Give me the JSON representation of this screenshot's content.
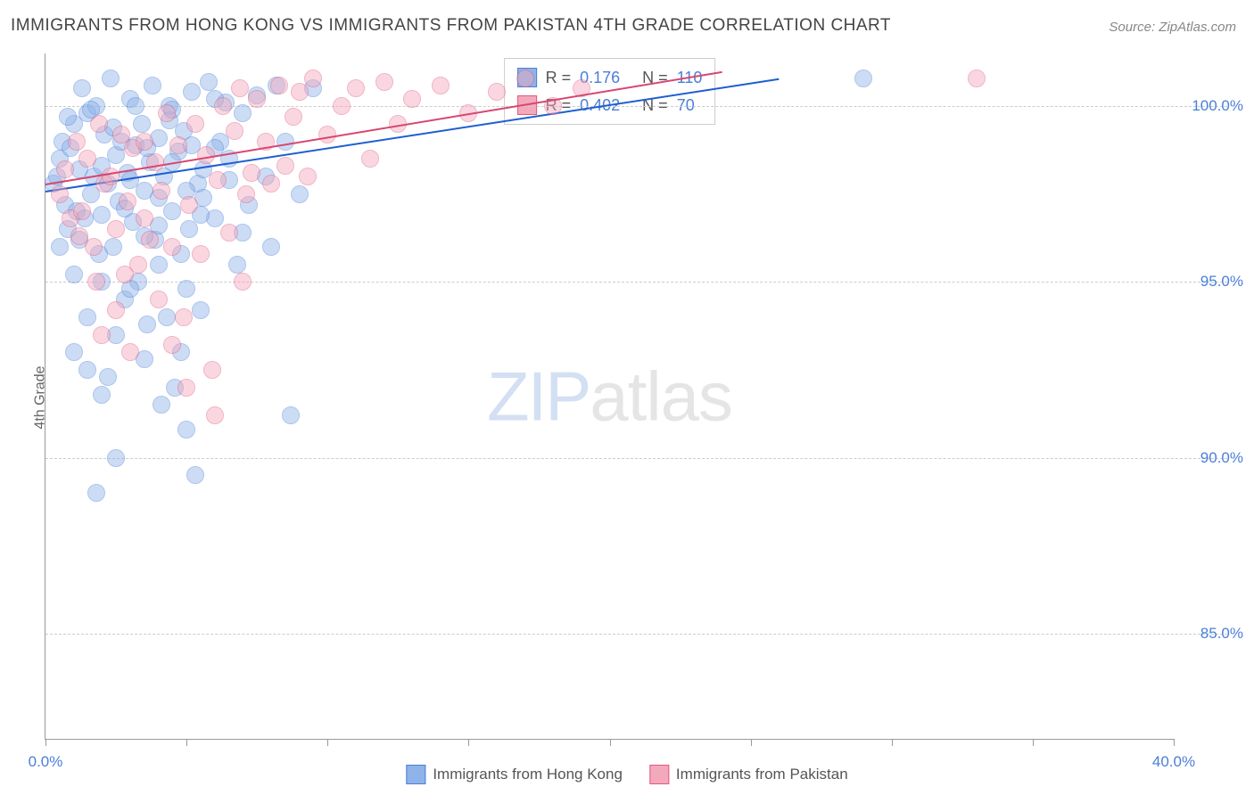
{
  "title": "IMMIGRANTS FROM HONG KONG VS IMMIGRANTS FROM PAKISTAN 4TH GRADE CORRELATION CHART",
  "source_label": "Source: ",
  "source_link": "ZipAtlas.com",
  "ylabel": "4th Grade",
  "watermark": {
    "part1": "ZIP",
    "part2": "atlas"
  },
  "chart": {
    "type": "scatter",
    "xlim": [
      0,
      40
    ],
    "ylim": [
      82,
      101.5
    ],
    "x_ticks": [
      0,
      5,
      10,
      15,
      20,
      25,
      30,
      35,
      40
    ],
    "x_tick_labels": {
      "0": "0.0%",
      "40": "40.0%"
    },
    "y_ticks": [
      85,
      90,
      95,
      100
    ],
    "y_tick_labels": [
      "85.0%",
      "90.0%",
      "95.0%",
      "100.0%"
    ],
    "grid_color": "#cccccc",
    "background_color": "#ffffff",
    "point_radius": 10,
    "point_opacity": 0.45,
    "series": [
      {
        "name": "Immigrants from Hong Kong",
        "fill": "#8fb3e8",
        "stroke": "#4a7fd8",
        "line_color": "#1e5fd0",
        "R": "0.176",
        "N": "110",
        "trend": {
          "x1": 0,
          "y1": 97.6,
          "x2": 26,
          "y2": 100.8
        },
        "points": [
          [
            0.3,
            97.8
          ],
          [
            0.4,
            98.0
          ],
          [
            0.5,
            98.5
          ],
          [
            0.6,
            99.0
          ],
          [
            0.7,
            97.2
          ],
          [
            0.8,
            96.5
          ],
          [
            0.9,
            98.8
          ],
          [
            1.0,
            99.5
          ],
          [
            1.1,
            97.0
          ],
          [
            1.2,
            98.2
          ],
          [
            1.3,
            100.5
          ],
          [
            1.4,
            96.8
          ],
          [
            1.5,
            99.8
          ],
          [
            1.6,
            97.5
          ],
          [
            1.7,
            98.0
          ],
          [
            1.8,
            100.0
          ],
          [
            1.9,
            95.8
          ],
          [
            2.0,
            98.3
          ],
          [
            2.1,
            99.2
          ],
          [
            2.2,
            97.8
          ],
          [
            2.3,
            100.8
          ],
          [
            2.4,
            96.0
          ],
          [
            2.5,
            98.6
          ],
          [
            2.6,
            97.3
          ],
          [
            2.7,
            99.0
          ],
          [
            2.8,
            94.5
          ],
          [
            2.9,
            98.1
          ],
          [
            3.0,
            100.2
          ],
          [
            3.1,
            96.7
          ],
          [
            3.2,
            98.9
          ],
          [
            3.3,
            95.0
          ],
          [
            3.4,
            99.5
          ],
          [
            3.5,
            97.6
          ],
          [
            3.6,
            93.8
          ],
          [
            3.7,
            98.4
          ],
          [
            3.8,
            100.6
          ],
          [
            3.9,
            96.2
          ],
          [
            4.0,
            99.1
          ],
          [
            4.1,
            91.5
          ],
          [
            4.2,
            98.0
          ],
          [
            4.3,
            94.0
          ],
          [
            4.4,
            100.0
          ],
          [
            4.5,
            97.0
          ],
          [
            4.6,
            92.0
          ],
          [
            4.7,
            98.7
          ],
          [
            4.8,
            93.0
          ],
          [
            4.9,
            99.3
          ],
          [
            5.0,
            90.8
          ],
          [
            5.1,
            96.5
          ],
          [
            5.2,
            100.4
          ],
          [
            5.3,
            89.5
          ],
          [
            5.4,
            97.8
          ],
          [
            5.5,
            94.2
          ],
          [
            5.6,
            98.2
          ],
          [
            5.8,
            100.7
          ],
          [
            6.0,
            96.8
          ],
          [
            6.2,
            99.0
          ],
          [
            6.4,
            100.1
          ],
          [
            6.5,
            98.5
          ],
          [
            6.8,
            95.5
          ],
          [
            7.0,
            99.8
          ],
          [
            7.2,
            97.2
          ],
          [
            7.5,
            100.3
          ],
          [
            7.8,
            98.0
          ],
          [
            8.0,
            96.0
          ],
          [
            8.2,
            100.6
          ],
          [
            8.5,
            99.0
          ],
          [
            8.7,
            91.2
          ],
          [
            9.0,
            97.5
          ],
          [
            9.5,
            100.5
          ],
          [
            1.0,
            95.2
          ],
          [
            1.5,
            94.0
          ],
          [
            2.0,
            96.9
          ],
          [
            2.5,
            93.5
          ],
          [
            3.0,
            97.9
          ],
          [
            3.5,
            96.3
          ],
          [
            4.0,
            95.5
          ],
          [
            4.5,
            98.4
          ],
          [
            5.0,
            97.6
          ],
          [
            0.8,
            99.7
          ],
          [
            1.2,
            96.2
          ],
          [
            1.6,
            99.9
          ],
          [
            2.0,
            95.0
          ],
          [
            2.4,
            99.4
          ],
          [
            2.8,
            97.1
          ],
          [
            3.2,
            100.0
          ],
          [
            3.6,
            98.8
          ],
          [
            4.0,
            96.6
          ],
          [
            4.4,
            99.6
          ],
          [
            4.8,
            95.8
          ],
          [
            5.2,
            98.9
          ],
          [
            5.6,
            97.4
          ],
          [
            6.0,
            100.2
          ],
          [
            0.5,
            96.0
          ],
          [
            1.0,
            93.0
          ],
          [
            1.5,
            92.5
          ],
          [
            2.0,
            91.8
          ],
          [
            2.5,
            90.0
          ],
          [
            3.0,
            94.8
          ],
          [
            3.5,
            92.8
          ],
          [
            4.0,
            97.4
          ],
          [
            4.5,
            99.9
          ],
          [
            5.0,
            94.8
          ],
          [
            5.5,
            96.9
          ],
          [
            6.0,
            98.8
          ],
          [
            6.5,
            97.9
          ],
          [
            7.0,
            96.4
          ],
          [
            29.0,
            100.8
          ],
          [
            1.8,
            89.0
          ],
          [
            2.2,
            92.3
          ]
        ]
      },
      {
        "name": "Immigrants from Pakistan",
        "fill": "#f4a8bb",
        "stroke": "#e05a80",
        "line_color": "#d84670",
        "R": "0.402",
        "N": "70",
        "trend": {
          "x1": 0,
          "y1": 97.8,
          "x2": 24,
          "y2": 101.0
        },
        "points": [
          [
            0.5,
            97.5
          ],
          [
            0.7,
            98.2
          ],
          [
            0.9,
            96.8
          ],
          [
            1.1,
            99.0
          ],
          [
            1.3,
            97.0
          ],
          [
            1.5,
            98.5
          ],
          [
            1.7,
            96.0
          ],
          [
            1.9,
            99.5
          ],
          [
            2.1,
            97.8
          ],
          [
            2.3,
            98.0
          ],
          [
            2.5,
            96.5
          ],
          [
            2.7,
            99.2
          ],
          [
            2.9,
            97.3
          ],
          [
            3.1,
            98.8
          ],
          [
            3.3,
            95.5
          ],
          [
            3.5,
            99.0
          ],
          [
            3.7,
            96.2
          ],
          [
            3.9,
            98.4
          ],
          [
            4.1,
            97.6
          ],
          [
            4.3,
            99.8
          ],
          [
            4.5,
            96.0
          ],
          [
            4.7,
            98.9
          ],
          [
            4.9,
            94.0
          ],
          [
            5.1,
            97.2
          ],
          [
            5.3,
            99.5
          ],
          [
            5.5,
            95.8
          ],
          [
            5.7,
            98.6
          ],
          [
            5.9,
            92.5
          ],
          [
            6.1,
            97.9
          ],
          [
            6.3,
            100.0
          ],
          [
            6.5,
            96.4
          ],
          [
            6.7,
            99.3
          ],
          [
            6.9,
            100.5
          ],
          [
            7.1,
            97.5
          ],
          [
            7.3,
            98.1
          ],
          [
            7.5,
            100.2
          ],
          [
            7.8,
            99.0
          ],
          [
            8.0,
            97.8
          ],
          [
            8.3,
            100.6
          ],
          [
            8.5,
            98.3
          ],
          [
            8.8,
            99.7
          ],
          [
            9.0,
            100.4
          ],
          [
            9.3,
            98.0
          ],
          [
            9.5,
            100.8
          ],
          [
            10.0,
            99.2
          ],
          [
            10.5,
            100.0
          ],
          [
            11.0,
            100.5
          ],
          [
            11.5,
            98.5
          ],
          [
            12.0,
            100.7
          ],
          [
            12.5,
            99.5
          ],
          [
            13.0,
            100.2
          ],
          [
            14.0,
            100.6
          ],
          [
            15.0,
            99.8
          ],
          [
            16.0,
            100.4
          ],
          [
            17.0,
            100.8
          ],
          [
            18.0,
            100.0
          ],
          [
            19.0,
            100.5
          ],
          [
            33.0,
            100.8
          ],
          [
            2.0,
            93.5
          ],
          [
            3.0,
            93.0
          ],
          [
            4.0,
            94.5
          ],
          [
            5.0,
            92.0
          ],
          [
            6.0,
            91.2
          ],
          [
            1.8,
            95.0
          ],
          [
            2.5,
            94.2
          ],
          [
            3.5,
            96.8
          ],
          [
            4.5,
            93.2
          ],
          [
            7.0,
            95.0
          ],
          [
            1.2,
            96.3
          ],
          [
            2.8,
            95.2
          ]
        ]
      }
    ]
  },
  "legend_box": {
    "r_label": "R =",
    "n_label": "N ="
  }
}
